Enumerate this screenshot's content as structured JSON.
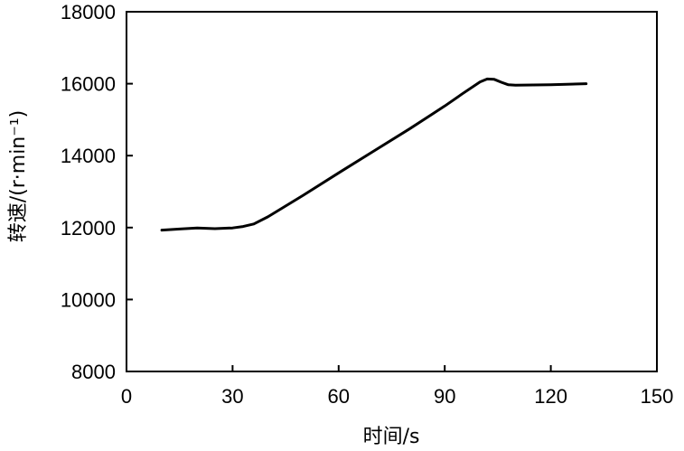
{
  "chart_data": {
    "type": "line",
    "title": "",
    "xlabel": "时间/s",
    "ylabel": "转速/(r·min⁻¹)",
    "xlim": [
      0,
      150
    ],
    "ylim": [
      8000,
      18000
    ],
    "xticks": [
      "0",
      "30",
      "60",
      "90",
      "120",
      "150"
    ],
    "yticks": [
      "8000",
      "10000",
      "12000",
      "14000",
      "16000",
      "18000"
    ],
    "grid": false,
    "series": [
      {
        "x": [
          10,
          15,
          20,
          25,
          30,
          33,
          36,
          40,
          50,
          60,
          70,
          80,
          90,
          95,
          100,
          102,
          104,
          106,
          108,
          110,
          120,
          130
        ],
        "values": [
          11930,
          11960,
          11990,
          11970,
          11990,
          12030,
          12100,
          12300,
          12900,
          13520,
          14130,
          14740,
          15380,
          15720,
          16050,
          16130,
          16120,
          16040,
          15970,
          15960,
          15970,
          16000
        ]
      }
    ]
  }
}
